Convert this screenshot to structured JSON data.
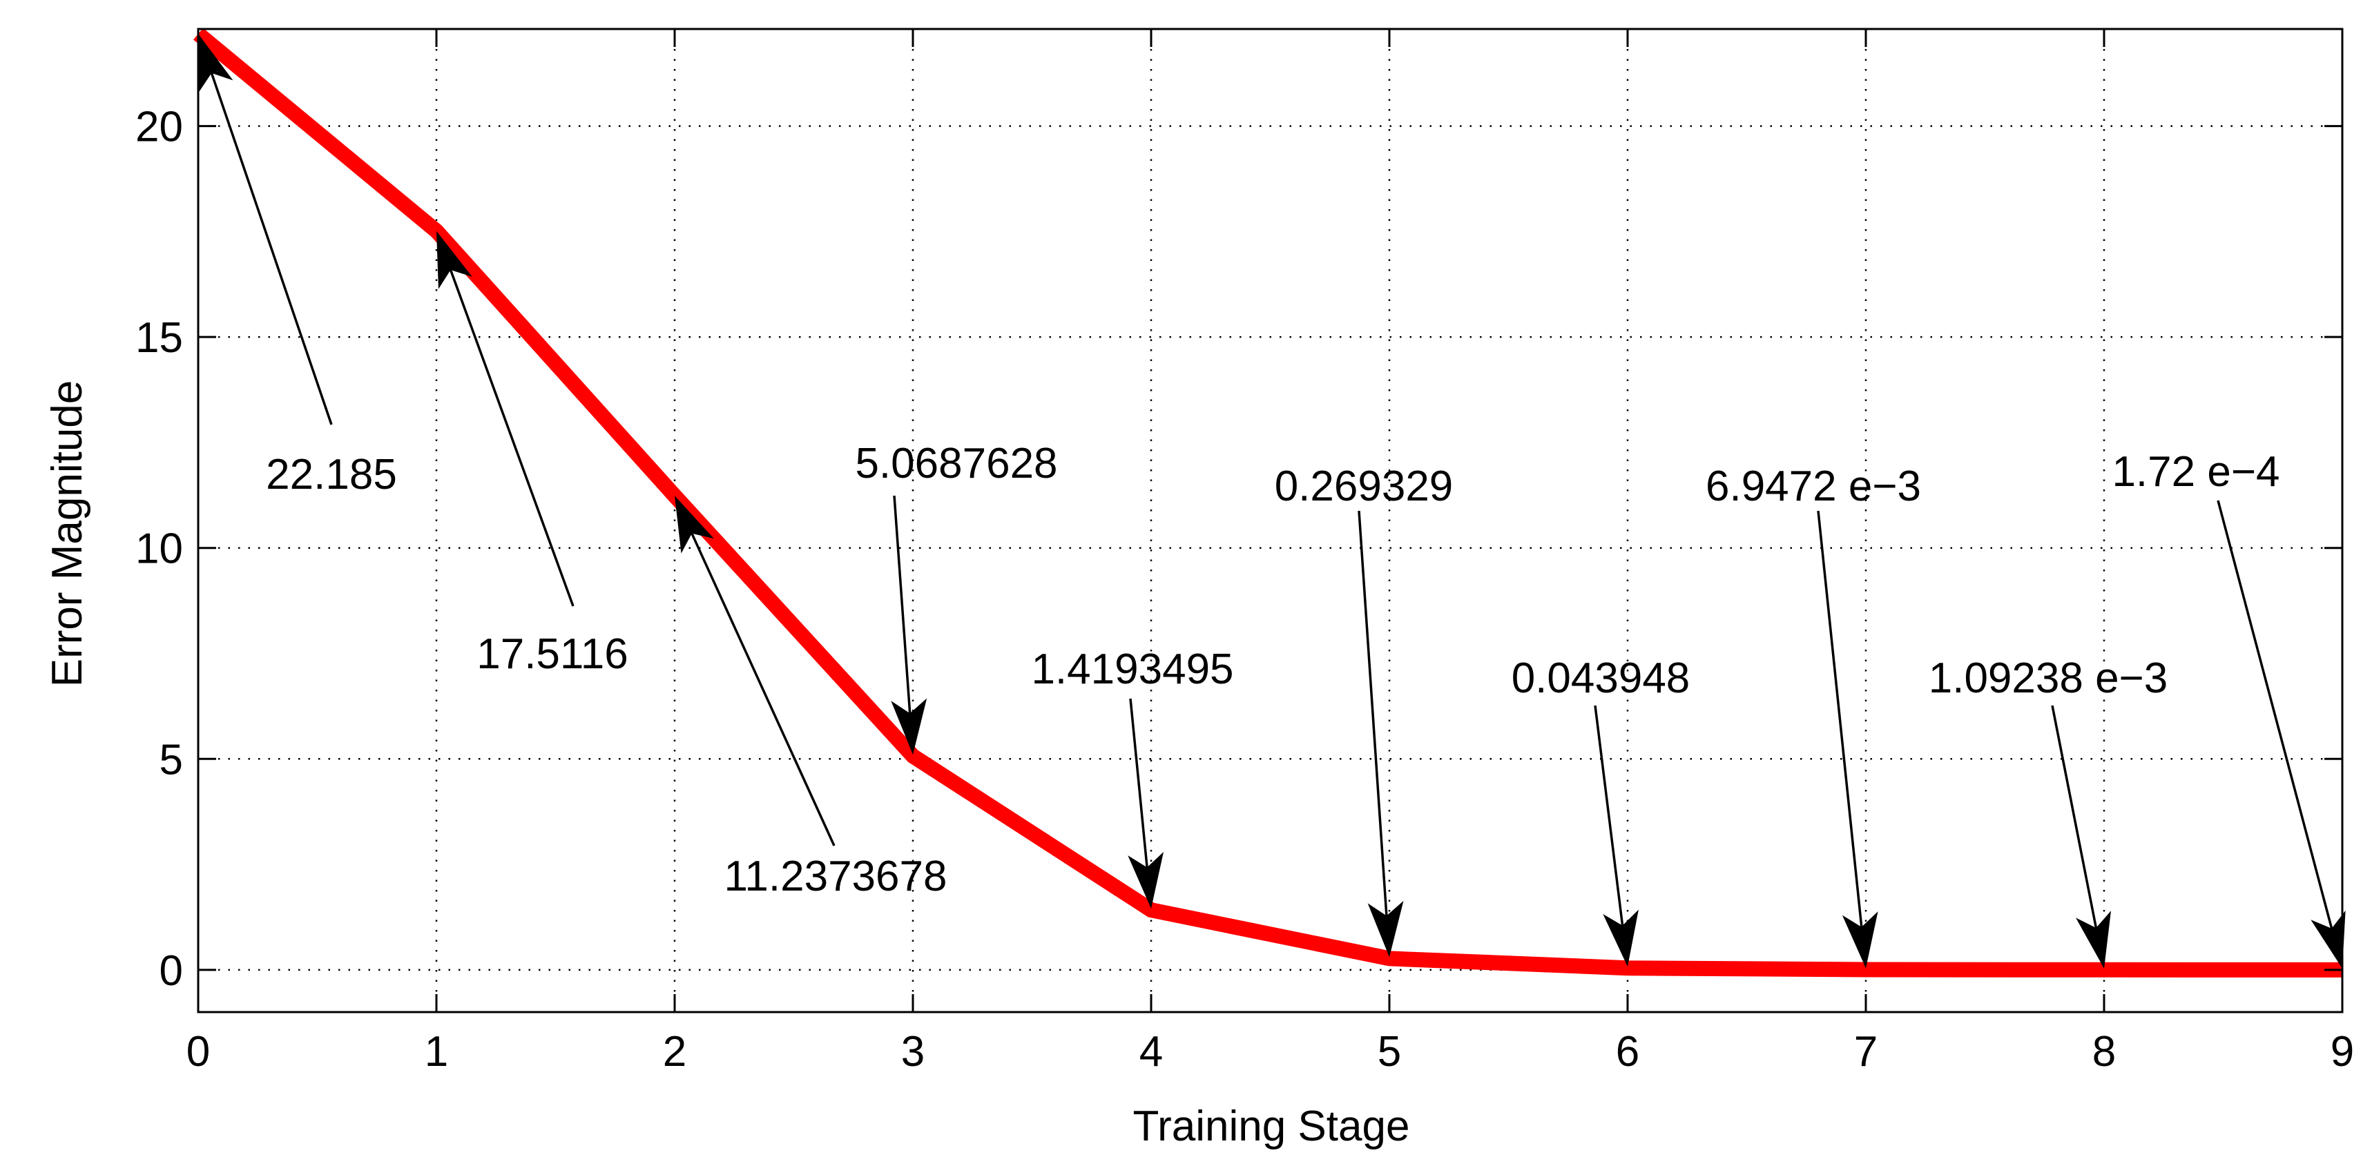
{
  "chart_data": {
    "type": "line",
    "xlabel": "Training Stage",
    "ylabel": "Error Magnitude",
    "xlim": [
      0,
      9
    ],
    "ylim": [
      -1,
      22.3
    ],
    "xticks": [
      0,
      1,
      2,
      3,
      4,
      5,
      6,
      7,
      8,
      9
    ],
    "yticks": [
      0,
      5,
      10,
      15,
      20
    ],
    "xtick_labels": [
      "0",
      "1",
      "2",
      "3",
      "4",
      "5",
      "6",
      "7",
      "8",
      "9"
    ],
    "ytick_labels": [
      "0",
      "5",
      "10",
      "15",
      "20"
    ],
    "grid": true,
    "series": [
      {
        "x": [
          0,
          1,
          2,
          3,
          4,
          5,
          6,
          7,
          8,
          9
        ],
        "values": [
          22.185,
          17.5116,
          11.2373678,
          5.0687628,
          1.4193495,
          0.269329,
          0.043948,
          0.0069472,
          0.00109238,
          0.000172
        ],
        "color": "#ff0000"
      }
    ],
    "annotations": [
      {
        "text": "22.185",
        "x": 0
      },
      {
        "text": "17.5116",
        "x": 1
      },
      {
        "text": "11.2373678",
        "x": 2
      },
      {
        "text": "5.0687628",
        "x": 3
      },
      {
        "text": "1.4193495",
        "x": 4
      },
      {
        "text": "0.269329",
        "x": 5
      },
      {
        "text": "0.043948",
        "x": 6
      },
      {
        "text": "6.9472 e−3",
        "x": 7
      },
      {
        "text": "1.09238 e−3",
        "x": 8
      },
      {
        "text": "1.72 e−4",
        "x": 9
      }
    ],
    "colors": {
      "line": "#ff0000",
      "axes": "#000000",
      "grid": "#000000",
      "arrow": "#000000"
    }
  }
}
